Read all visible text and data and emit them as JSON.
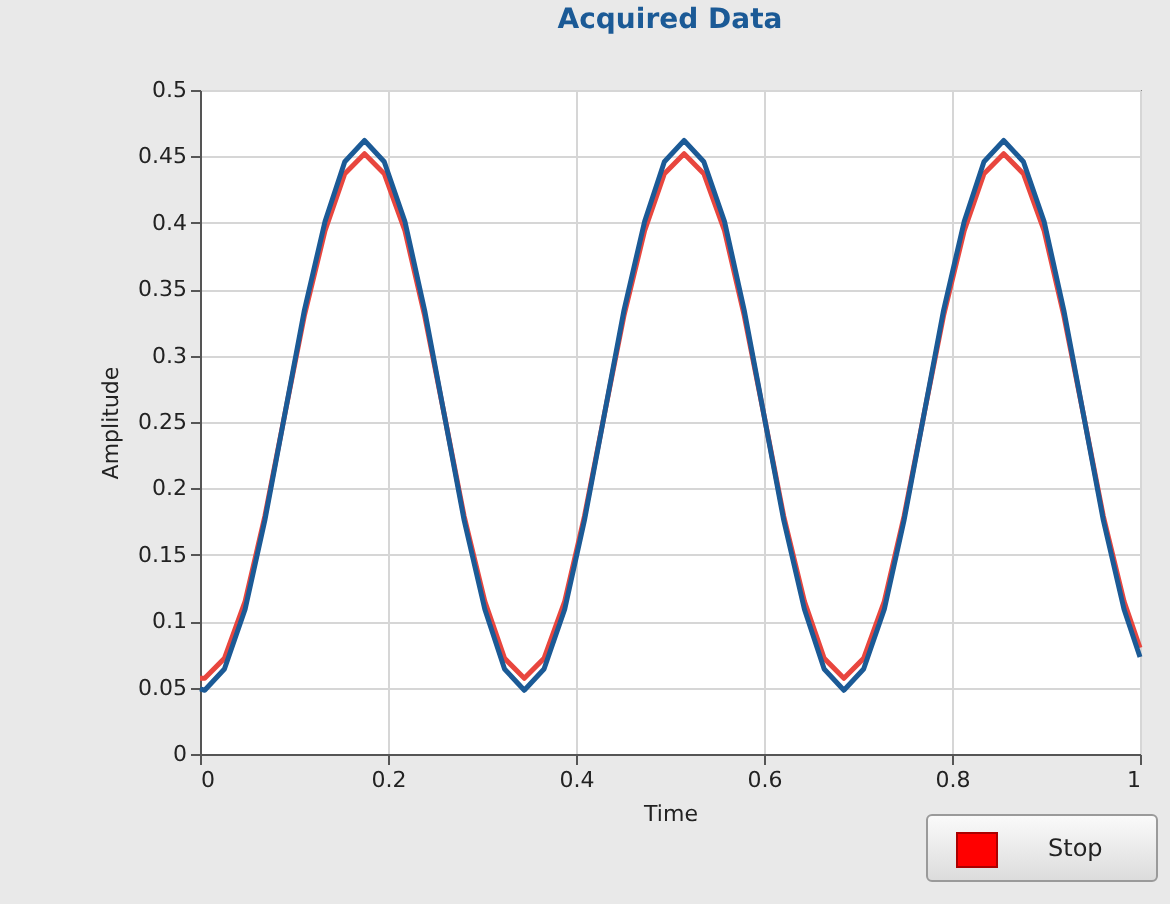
{
  "chart_data": {
    "type": "line",
    "title": "Acquired Data",
    "xlabel": "Time",
    "ylabel": "Amplitude",
    "x": [
      0,
      0.005,
      0.026,
      0.048,
      0.069,
      0.09,
      0.111,
      0.133,
      0.154,
      0.175,
      0.196,
      0.218,
      0.239,
      0.26,
      0.281,
      0.303,
      0.324,
      0.345,
      0.366,
      0.388,
      0.409,
      0.43,
      0.451,
      0.473,
      0.494,
      0.515,
      0.536,
      0.558,
      0.579,
      0.6,
      0.621,
      0.643,
      0.664,
      0.685,
      0.706,
      0.728,
      0.749,
      0.77,
      0.791,
      0.813,
      0.834,
      0.855,
      0.876,
      0.898,
      0.919,
      0.94,
      0.961,
      0.983,
      1
    ],
    "series": [
      {
        "color": "#e8463e",
        "values": [
          0.057,
          0.057,
          0.072,
          0.115,
          0.179,
          0.255,
          0.33,
          0.394,
          0.437,
          0.452,
          0.437,
          0.394,
          0.33,
          0.255,
          0.179,
          0.115,
          0.072,
          0.057,
          0.072,
          0.115,
          0.179,
          0.255,
          0.33,
          0.394,
          0.437,
          0.452,
          0.437,
          0.394,
          0.33,
          0.255,
          0.179,
          0.115,
          0.072,
          0.057,
          0.072,
          0.115,
          0.179,
          0.255,
          0.33,
          0.394,
          0.437,
          0.452,
          0.437,
          0.394,
          0.33,
          0.255,
          0.179,
          0.115,
          0.08
        ]
      },
      {
        "color": "#1b5a96",
        "values": [
          0.049,
          0.048,
          0.064,
          0.109,
          0.176,
          0.255,
          0.334,
          0.401,
          0.446,
          0.462,
          0.446,
          0.401,
          0.334,
          0.255,
          0.176,
          0.109,
          0.064,
          0.048,
          0.064,
          0.109,
          0.176,
          0.255,
          0.334,
          0.401,
          0.446,
          0.462,
          0.446,
          0.401,
          0.334,
          0.255,
          0.176,
          0.109,
          0.064,
          0.048,
          0.064,
          0.109,
          0.176,
          0.255,
          0.334,
          0.401,
          0.446,
          0.462,
          0.446,
          0.401,
          0.334,
          0.255,
          0.176,
          0.109,
          0.073
        ]
      }
    ],
    "xlim": [
      0,
      1
    ],
    "xticks": [
      0,
      0.2,
      0.4,
      0.6,
      0.8,
      1
    ],
    "ylim": [
      0,
      0.5
    ],
    "yticks": [
      0,
      0.05,
      0.1,
      0.15,
      0.2,
      0.25,
      0.3,
      0.35,
      0.4,
      0.45,
      0.5
    ],
    "grid": true,
    "legend": false,
    "annotations": [
      "Stop"
    ]
  }
}
